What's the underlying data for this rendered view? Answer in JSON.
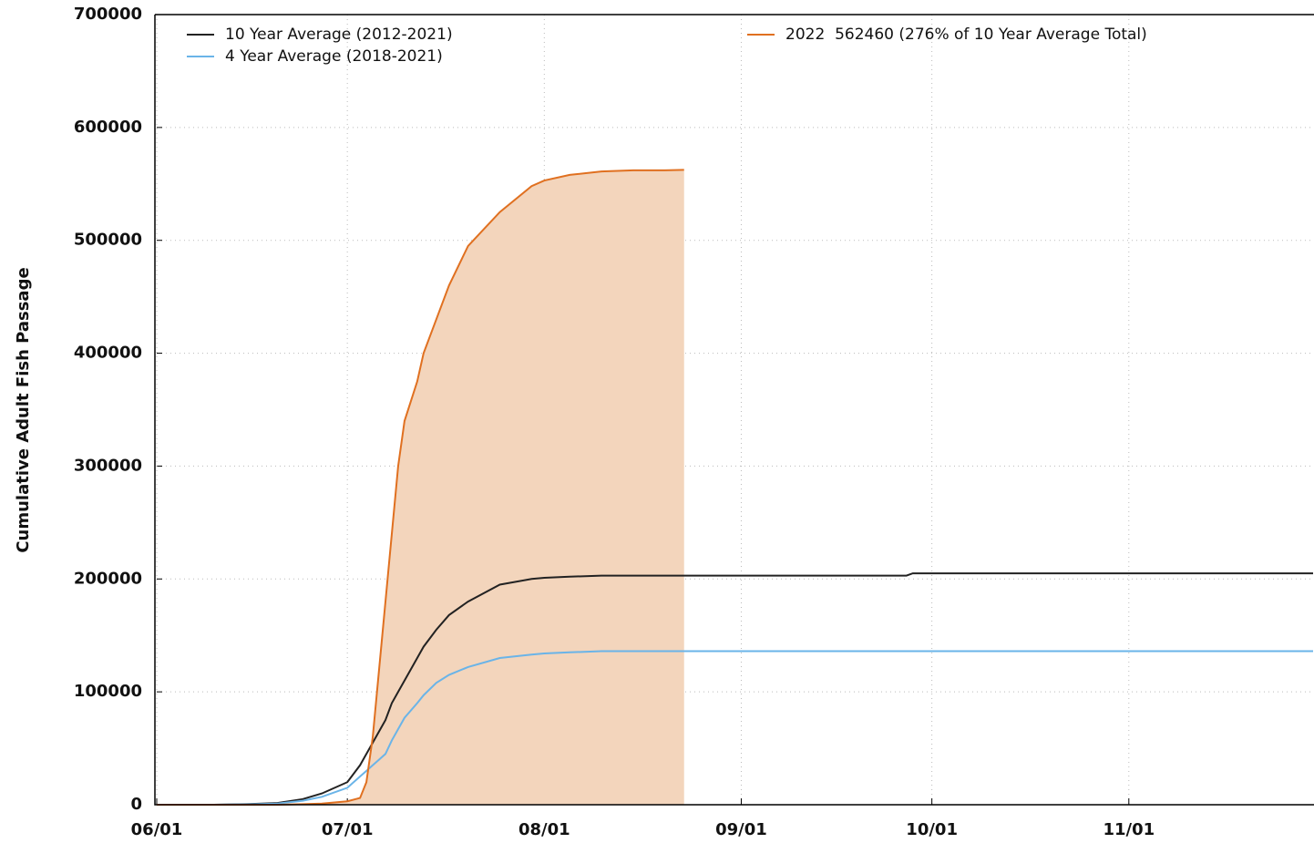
{
  "chart_data": {
    "type": "line",
    "y_label": "Cumulative Adult Fish Passage",
    "x": [
      "06/01",
      "06/10",
      "06/15",
      "06/20",
      "06/24",
      "06/27",
      "07/01",
      "07/03",
      "07/04",
      "07/05",
      "07/06",
      "07/07",
      "07/08",
      "07/09",
      "07/10",
      "07/12",
      "07/13",
      "07/15",
      "07/17",
      "07/20",
      "07/25",
      "07/30",
      "08/01",
      "08/05",
      "08/10",
      "08/15",
      "08/20",
      "08/23",
      "09/01",
      "09/15",
      "09/27",
      "09/28",
      "10/15",
      "11/01",
      "11/15",
      "11/30"
    ],
    "series": [
      {
        "name": "10 Year Average (2012-2021)",
        "color": "#222222",
        "values": [
          0,
          0,
          500,
          1500,
          5000,
          10000,
          20000,
          35000,
          45000,
          55000,
          65000,
          75000,
          90000,
          100000,
          110000,
          130000,
          140000,
          155000,
          168000,
          180000,
          195000,
          200000,
          201000,
          202000,
          203000,
          203000,
          203000,
          203000,
          203000,
          203000,
          203000,
          205000,
          205000,
          205000,
          205000,
          205000
        ]
      },
      {
        "name": "4 Year Average (2018-2021)",
        "color": "#6ab4e8",
        "values": [
          0,
          0,
          300,
          1000,
          3500,
          7000,
          15000,
          25000,
          30000,
          35000,
          40000,
          45000,
          57000,
          67000,
          77000,
          90000,
          97000,
          108000,
          115000,
          122000,
          130000,
          133000,
          134000,
          135000,
          136000,
          136000,
          136000,
          136000,
          136000,
          136000,
          136000,
          136000,
          136000,
          136000,
          136000,
          136000
        ]
      },
      {
        "name": "2022  562460 (276% of 10 Year Average Total)",
        "color": "#e07020",
        "fill": "#f3d5bc",
        "values": [
          0,
          0,
          0,
          0,
          500,
          1000,
          3000,
          6000,
          20000,
          60000,
          120000,
          180000,
          240000,
          300000,
          340000,
          375000,
          400000,
          430000,
          460000,
          495000,
          525000,
          548000,
          553000,
          558000,
          561000,
          562000,
          562000,
          562460,
          null,
          null,
          null,
          null,
          null,
          null,
          null,
          null
        ]
      }
    ],
    "xlim": [
      "06/01",
      "11/30"
    ],
    "xticks": [
      "06/01",
      "07/01",
      "08/01",
      "09/01",
      "10/01",
      "11/01"
    ],
    "ylim": [
      0,
      700000
    ],
    "yticks": [
      0,
      100000,
      200000,
      300000,
      400000,
      500000,
      600000,
      700000
    ],
    "grid": true
  }
}
